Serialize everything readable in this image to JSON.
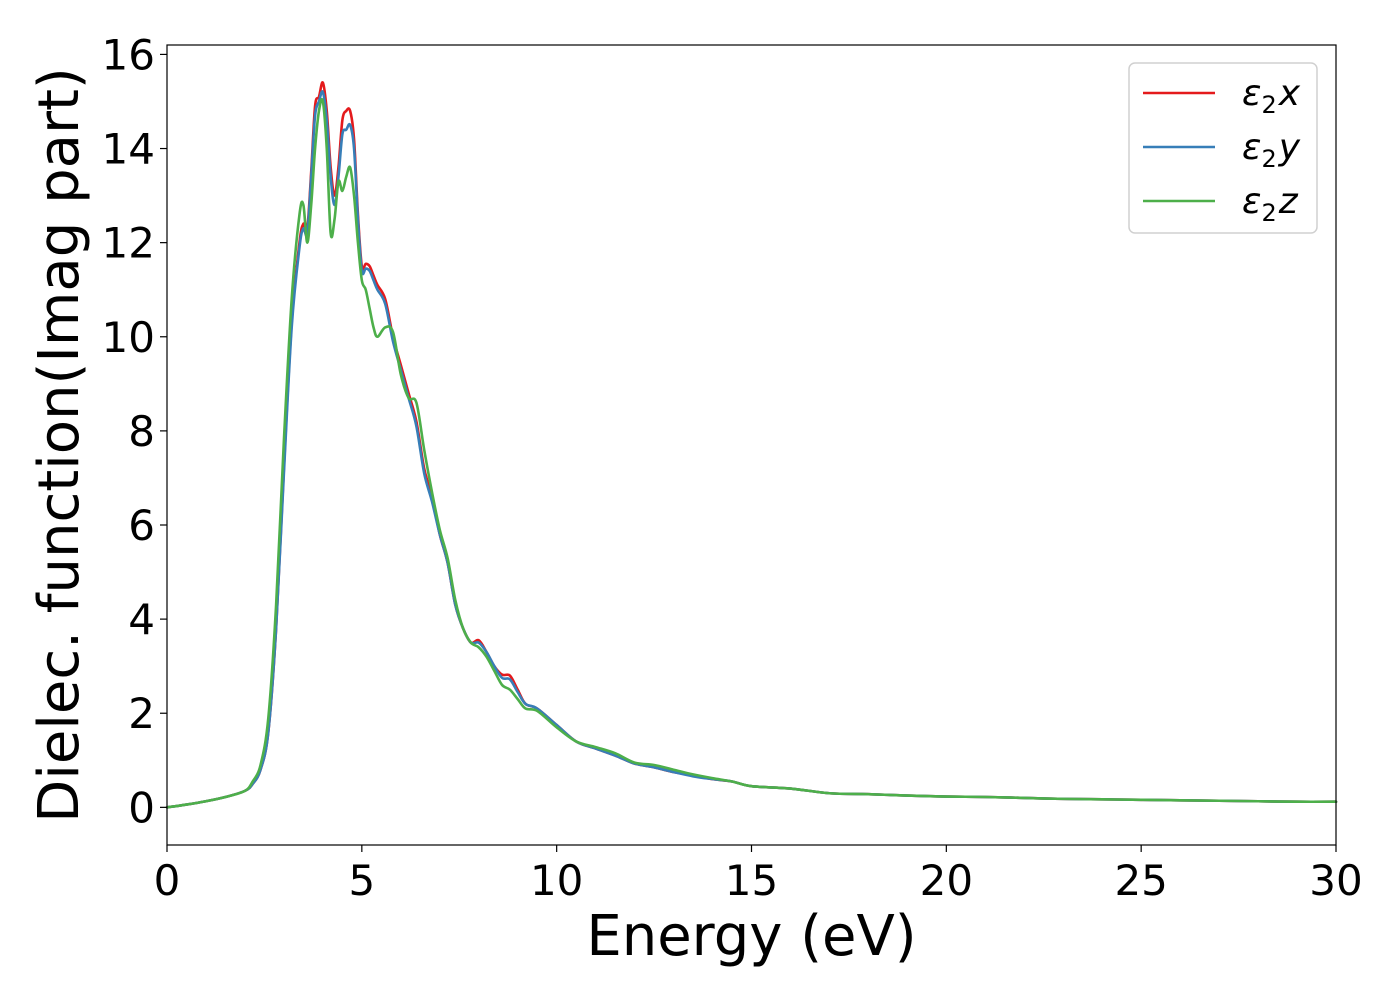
{
  "chart_data": {
    "type": "line",
    "xlabel": "Energy (eV)",
    "ylabel": "Dielec. function(Imag part)",
    "xlim": [
      0,
      30
    ],
    "ylim": [
      -0.8,
      16.2
    ],
    "xticks": [
      0,
      5,
      10,
      15,
      20,
      25,
      30
    ],
    "yticks": [
      0,
      2,
      4,
      6,
      8,
      10,
      12,
      14,
      16
    ],
    "grid": false,
    "legend_position": "top-right",
    "series": [
      {
        "name": "ε₂x",
        "legend": {
          "base": "ε",
          "sub": "2",
          "var": "x"
        },
        "color": "#e41a1c",
        "x": [
          0,
          0.5,
          1,
          1.5,
          2,
          2.2,
          2.4,
          2.6,
          2.8,
          3,
          3.2,
          3.4,
          3.5,
          3.6,
          3.7,
          3.8,
          3.9,
          4,
          4.1,
          4.2,
          4.3,
          4.4,
          4.5,
          4.6,
          4.7,
          4.8,
          4.9,
          5,
          5.1,
          5.2,
          5.3,
          5.4,
          5.6,
          5.8,
          6,
          6.2,
          6.4,
          6.6,
          6.8,
          7,
          7.2,
          7.4,
          7.6,
          7.8,
          8,
          8.2,
          8.4,
          8.6,
          8.8,
          9,
          9.2,
          9.5,
          10,
          10.5,
          11,
          11.5,
          12,
          12.5,
          13,
          13.5,
          14,
          14.5,
          15,
          16,
          17,
          18,
          19,
          20,
          21,
          22,
          23,
          24,
          25,
          26,
          27,
          28,
          29,
          30
        ],
        "y": [
          0,
          0.06,
          0.13,
          0.22,
          0.35,
          0.5,
          0.8,
          1.6,
          3.8,
          7.2,
          10.3,
          12.0,
          12.4,
          12.3,
          13.5,
          14.9,
          15.1,
          15.4,
          14.8,
          13.6,
          13.0,
          13.6,
          14.6,
          14.8,
          14.8,
          14.2,
          12.6,
          11.5,
          11.55,
          11.5,
          11.3,
          11.1,
          10.8,
          10.0,
          9.4,
          8.8,
          8.2,
          7.2,
          6.6,
          5.8,
          5.2,
          4.3,
          3.8,
          3.5,
          3.55,
          3.3,
          3.0,
          2.82,
          2.8,
          2.5,
          2.2,
          2.1,
          1.75,
          1.4,
          1.25,
          1.1,
          0.93,
          0.85,
          0.75,
          0.68,
          0.6,
          0.55,
          0.45,
          0.4,
          0.3,
          0.28,
          0.25,
          0.23,
          0.22,
          0.2,
          0.18,
          0.17,
          0.16,
          0.15,
          0.14,
          0.13,
          0.12,
          0.12
        ]
      },
      {
        "name": "ε₂y",
        "legend": {
          "base": "ε",
          "sub": "2",
          "var": "y"
        },
        "color": "#377eb8",
        "x": [
          0,
          0.5,
          1,
          1.5,
          2,
          2.2,
          2.4,
          2.6,
          2.8,
          3,
          3.2,
          3.4,
          3.5,
          3.6,
          3.7,
          3.8,
          3.9,
          4,
          4.1,
          4.2,
          4.3,
          4.4,
          4.5,
          4.6,
          4.7,
          4.8,
          4.9,
          5,
          5.1,
          5.2,
          5.3,
          5.4,
          5.6,
          5.8,
          6,
          6.2,
          6.4,
          6.6,
          6.8,
          7,
          7.2,
          7.4,
          7.6,
          7.8,
          8,
          8.2,
          8.4,
          8.6,
          8.8,
          9,
          9.2,
          9.5,
          10,
          10.5,
          11,
          11.5,
          12,
          12.5,
          13,
          13.5,
          14,
          14.5,
          15,
          16,
          17,
          18,
          19,
          20,
          21,
          22,
          23,
          24,
          25,
          26,
          27,
          28,
          29,
          30
        ],
        "y": [
          0,
          0.06,
          0.13,
          0.22,
          0.35,
          0.5,
          0.8,
          1.6,
          3.8,
          7.1,
          10.2,
          11.9,
          12.3,
          12.2,
          13.4,
          14.7,
          15.0,
          15.2,
          14.6,
          13.4,
          12.8,
          13.4,
          14.3,
          14.4,
          14.5,
          14.0,
          12.5,
          11.4,
          11.45,
          11.4,
          11.2,
          11.0,
          10.7,
          9.9,
          9.3,
          8.7,
          8.1,
          7.1,
          6.5,
          5.8,
          5.2,
          4.3,
          3.8,
          3.5,
          3.5,
          3.3,
          3.0,
          2.75,
          2.72,
          2.45,
          2.2,
          2.1,
          1.75,
          1.4,
          1.25,
          1.1,
          0.93,
          0.85,
          0.75,
          0.66,
          0.6,
          0.55,
          0.45,
          0.4,
          0.3,
          0.28,
          0.25,
          0.23,
          0.22,
          0.2,
          0.18,
          0.17,
          0.16,
          0.15,
          0.14,
          0.13,
          0.12,
          0.12
        ]
      },
      {
        "name": "ε₂z",
        "legend": {
          "base": "ε",
          "sub": "2",
          "var": "z"
        },
        "color": "#4daf4a",
        "x": [
          0,
          0.5,
          1,
          1.5,
          2,
          2.2,
          2.4,
          2.6,
          2.8,
          3,
          3.2,
          3.4,
          3.5,
          3.6,
          3.7,
          3.8,
          3.9,
          4,
          4.1,
          4.2,
          4.3,
          4.4,
          4.5,
          4.6,
          4.7,
          4.8,
          4.9,
          5,
          5.1,
          5.2,
          5.3,
          5.4,
          5.6,
          5.8,
          6,
          6.2,
          6.4,
          6.6,
          6.8,
          7,
          7.2,
          7.4,
          7.6,
          7.8,
          8,
          8.2,
          8.4,
          8.6,
          8.8,
          9,
          9.2,
          9.5,
          10,
          10.5,
          11,
          11.5,
          12,
          12.5,
          13,
          13.5,
          14,
          14.5,
          15,
          16,
          17,
          18,
          19,
          20,
          21,
          22,
          23,
          24,
          25,
          26,
          27,
          28,
          29,
          30
        ],
        "y": [
          0,
          0.06,
          0.13,
          0.22,
          0.35,
          0.55,
          0.9,
          1.9,
          4.3,
          7.8,
          10.8,
          12.6,
          12.8,
          12.0,
          12.8,
          14.0,
          14.8,
          15.0,
          14.0,
          12.2,
          12.5,
          13.3,
          13.1,
          13.4,
          13.6,
          13.0,
          12.0,
          11.2,
          11.0,
          10.6,
          10.2,
          10.0,
          10.2,
          10.1,
          9.2,
          8.7,
          8.6,
          7.6,
          6.7,
          5.9,
          5.3,
          4.4,
          3.8,
          3.5,
          3.4,
          3.2,
          2.9,
          2.6,
          2.5,
          2.3,
          2.1,
          2.05,
          1.7,
          1.4,
          1.28,
          1.15,
          0.95,
          0.9,
          0.8,
          0.7,
          0.62,
          0.55,
          0.45,
          0.4,
          0.3,
          0.28,
          0.25,
          0.23,
          0.22,
          0.2,
          0.18,
          0.17,
          0.16,
          0.15,
          0.14,
          0.13,
          0.12,
          0.12
        ]
      }
    ]
  }
}
